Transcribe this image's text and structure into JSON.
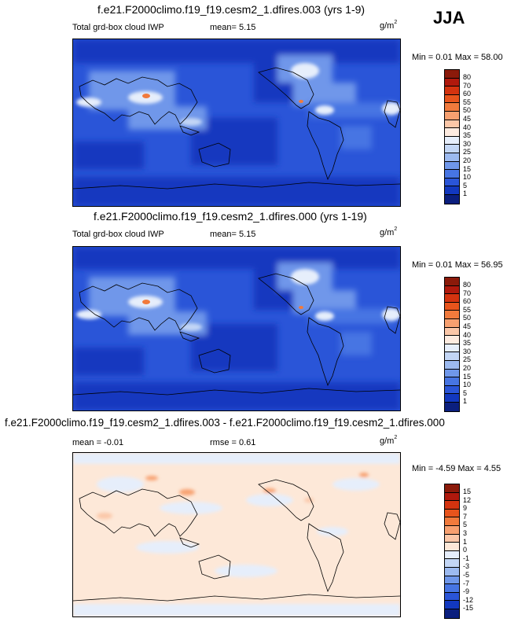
{
  "season": "JJA",
  "panels": [
    {
      "title": "f.e21.F2000climo.f19_f19.cesm2_1.dfires.003 (yrs 1-9)",
      "left": "Total grd-box cloud IWP",
      "mid": "mean=   5.15",
      "units": "g/m",
      "units_sup": "2",
      "minmax": "Min =  0.01 Max = 58.00",
      "colorbar": {
        "labels": [
          "80",
          "70",
          "60",
          "55",
          "50",
          "45",
          "40",
          "35",
          "30",
          "25",
          "20",
          "15",
          "10",
          "5",
          "1"
        ],
        "colors": [
          "#8b1a0a",
          "#b0190d",
          "#d4330f",
          "#e8541c",
          "#f17a3c",
          "#f7a070",
          "#fbc7a8",
          "#fdebe0",
          "#e6eefb",
          "#c3d6f5",
          "#9cbaf0",
          "#6f97ea",
          "#4775e3",
          "#2a55d8",
          "#1238bf",
          "#0b1f7e"
        ]
      }
    },
    {
      "title": "f.e21.F2000climo.f19_f19.cesm2_1.dfires.000 (yrs 1-19)",
      "left": "Total grd-box cloud IWP",
      "mid": "mean=   5.15",
      "units": "g/m",
      "units_sup": "2",
      "minmax": "Min =  0.01 Max = 56.95",
      "colorbar": {
        "labels": [
          "80",
          "70",
          "60",
          "55",
          "50",
          "45",
          "40",
          "35",
          "30",
          "25",
          "20",
          "15",
          "10",
          "5",
          "1"
        ],
        "colors": [
          "#8b1a0a",
          "#b0190d",
          "#d4330f",
          "#e8541c",
          "#f17a3c",
          "#f7a070",
          "#fbc7a8",
          "#fdebe0",
          "#e6eefb",
          "#c3d6f5",
          "#9cbaf0",
          "#6f97ea",
          "#4775e3",
          "#2a55d8",
          "#1238bf",
          "#0b1f7e"
        ]
      }
    },
    {
      "title": "f.e21.F2000climo.f19_f19.cesm2_1.dfires.003 - f.e21.F2000climo.f19_f19.cesm2_1.dfires.000",
      "left": "mean =  -0.01",
      "mid": "rmse =   0.61",
      "units": "g/m",
      "units_sup": "2",
      "minmax": "Min = -4.59 Max =  4.55",
      "colorbar": {
        "labels": [
          "15",
          "12",
          "9",
          "7",
          "5",
          "3",
          "1",
          "0",
          "-1",
          "-3",
          "-5",
          "-7",
          "-9",
          "-12",
          "-15"
        ],
        "colors": [
          "#8b1a0a",
          "#b0190d",
          "#d4330f",
          "#e8541c",
          "#f17a3c",
          "#f7a070",
          "#fbc7a8",
          "#fde8d8",
          "#e6eefb",
          "#c3d6f5",
          "#9cbaf0",
          "#6f97ea",
          "#4775e3",
          "#2a55d8",
          "#1238bf",
          "#0b1f7e"
        ]
      }
    }
  ]
}
